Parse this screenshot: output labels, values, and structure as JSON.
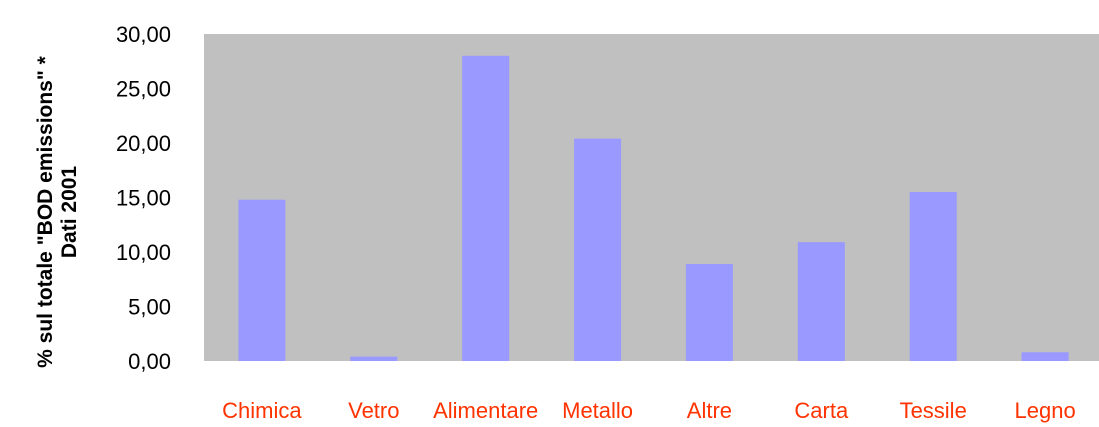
{
  "chart_data": {
    "type": "bar",
    "categories": [
      "Chimica",
      "Vetro",
      "Alimentare",
      "Metallo",
      "Altre",
      "Carta",
      "Tessile",
      "Legno"
    ],
    "values": [
      14.8,
      0.4,
      28.0,
      20.4,
      8.9,
      10.9,
      15.5,
      0.8
    ],
    "ylabel": "% sul totale \"BOD emissions\" * Dati 2001",
    "ylabel_lines": [
      "% sul totale \"BOD emissions\" *",
      "Dati 2001"
    ],
    "ylim": [
      0,
      30
    ],
    "yticks": [
      "0,00",
      "5,00",
      "10,00",
      "15,00",
      "20,00",
      "25,00",
      "30,00"
    ],
    "grid": false,
    "legend": "none",
    "colors": {
      "plot_background": "#c0c0c0",
      "bar": "#9999ff",
      "category_label": "#ff3300",
      "tick_label": "#000000"
    }
  }
}
